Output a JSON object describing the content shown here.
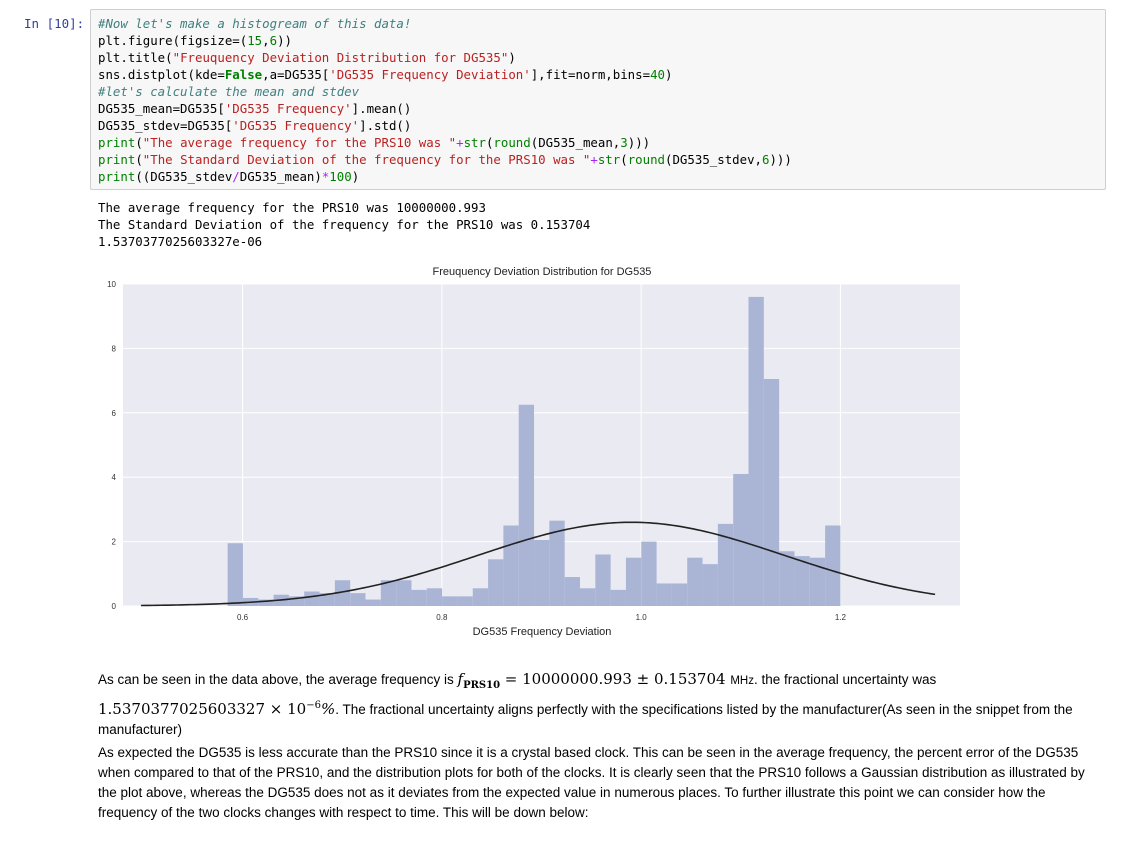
{
  "cell": {
    "prompt": "In [10]:",
    "code_lines": [
      [
        {
          "t": "#Now let's make a histogream of this data!",
          "c": "c"
        }
      ],
      [
        {
          "t": "plt.figure(figsize=(",
          "c": ""
        },
        {
          "t": "15",
          "c": "n"
        },
        {
          "t": ",",
          "c": ""
        },
        {
          "t": "6",
          "c": "n"
        },
        {
          "t": "))",
          "c": ""
        }
      ],
      [
        {
          "t": "plt.title(",
          "c": ""
        },
        {
          "t": "\"Freuquency Deviation Distribution for DG535\"",
          "c": "s"
        },
        {
          "t": ")",
          "c": ""
        }
      ],
      [
        {
          "t": "sns.distplot(kde=",
          "c": ""
        },
        {
          "t": "False",
          "c": "k"
        },
        {
          "t": ",a=DG535[",
          "c": ""
        },
        {
          "t": "'DG535 Frequency Deviation'",
          "c": "s"
        },
        {
          "t": "],fit=norm,bins=",
          "c": ""
        },
        {
          "t": "40",
          "c": "n"
        },
        {
          "t": ")",
          "c": ""
        }
      ],
      [
        {
          "t": "#let's calculate the mean and stdev",
          "c": "c"
        }
      ],
      [
        {
          "t": "DG535_mean=DG535[",
          "c": ""
        },
        {
          "t": "'DG535 Frequency'",
          "c": "s"
        },
        {
          "t": "].mean()",
          "c": ""
        }
      ],
      [
        {
          "t": "DG535_stdev=DG535[",
          "c": ""
        },
        {
          "t": "'DG535 Frequency'",
          "c": "s"
        },
        {
          "t": "].std()",
          "c": ""
        }
      ],
      [
        {
          "t": "print",
          "c": "b"
        },
        {
          "t": "(",
          "c": ""
        },
        {
          "t": "\"The average frequency for the PRS10 was \"",
          "c": "s"
        },
        {
          "t": "+",
          "c": "o"
        },
        {
          "t": "str",
          "c": "b"
        },
        {
          "t": "(",
          "c": ""
        },
        {
          "t": "round",
          "c": "b"
        },
        {
          "t": "(DG535_mean,",
          "c": ""
        },
        {
          "t": "3",
          "c": "n"
        },
        {
          "t": ")))",
          "c": ""
        }
      ],
      [
        {
          "t": "print",
          "c": "b"
        },
        {
          "t": "(",
          "c": ""
        },
        {
          "t": "\"The Standard Deviation of the frequency for the PRS10 was \"",
          "c": "s"
        },
        {
          "t": "+",
          "c": "o"
        },
        {
          "t": "str",
          "c": "b"
        },
        {
          "t": "(",
          "c": ""
        },
        {
          "t": "round",
          "c": "b"
        },
        {
          "t": "(DG535_stdev,",
          "c": ""
        },
        {
          "t": "6",
          "c": "n"
        },
        {
          "t": ")))",
          "c": ""
        }
      ],
      [
        {
          "t": "print",
          "c": "b"
        },
        {
          "t": "((DG535_stdev",
          "c": ""
        },
        {
          "t": "/",
          "c": "o"
        },
        {
          "t": "DG535_mean)",
          "c": ""
        },
        {
          "t": "*",
          "c": "o"
        },
        {
          "t": "100",
          "c": "n"
        },
        {
          "t": ")",
          "c": ""
        }
      ]
    ],
    "output_lines": [
      "The average frequency for the PRS10 was 10000000.993",
      "The Standard Deviation of the frequency for the PRS10 was 0.153704",
      "1.5370377025603327e-06"
    ]
  },
  "chart_data": {
    "type": "bar",
    "title": "Freuquency Deviation Distribution for DG535",
    "xlabel": "DG535 Frequency Deviation",
    "ylabel": "",
    "xlim": [
      0.48,
      1.32
    ],
    "ylim": [
      0,
      10
    ],
    "xticks": [
      "0.6",
      "0.8",
      "1.0",
      "1.2"
    ],
    "yticks": [
      "0",
      "2",
      "4",
      "6",
      "8",
      "10"
    ],
    "grid": true,
    "bin_edges_range": [
      0.585,
      1.2
    ],
    "bins": 40,
    "values": [
      1.95,
      0.25,
      0.2,
      0.35,
      0.3,
      0.45,
      0.4,
      0.8,
      0.4,
      0.2,
      0.8,
      0.8,
      0.5,
      0.55,
      0.3,
      0.3,
      0.55,
      1.45,
      2.5,
      6.25,
      2.05,
      2.65,
      0.9,
      0.55,
      1.6,
      0.5,
      1.5,
      2.0,
      0.7,
      0.7,
      1.5,
      1.3,
      2.55,
      4.1,
      9.6,
      7.05,
      1.7,
      1.55,
      1.5,
      2.5
    ],
    "fit_curve": {
      "type": "normal",
      "mean": 0.99,
      "peak": 2.6
    },
    "bar_color": "#aab5d6",
    "curve_color": "#222222",
    "plot_bg": "#eaeaf2"
  },
  "markdown": {
    "p1_before": "As can be seen in the data above, the average frequency is ",
    "p1_f": "f",
    "p1_sub": "PRS10",
    "p1_eq": " = 10000000.993 ± 0.153704 ",
    "p1_unit": "MHz",
    "p1_mid": ". the fractional uncertainty was",
    "p1_num": "1.5370377025603327 × 10",
    "p1_exp": "−6",
    "p1_pct": "%",
    "p1_after": ". The fractional uncertainty aligns perfectly with the specifications listed by the manufacturer(As seen in the snippet from the manufacturer)",
    "p2": "As expected the DG535 is less accurate than the PRS10 since it is a crystal based clock. This can be seen in the average frequency, the percent error of the DG535 when compared to that of the PRS10, and the distribution plots for both of the clocks. It is clearly seen that the PRS10 follows a Gaussian distribution as illustrated by the plot above, whereas the DG535 does not as it deviates from the expected value in numerous places. To further illustrate this point we can consider how the frequency of the two clocks changes with respect to time. This will be down below:"
  }
}
